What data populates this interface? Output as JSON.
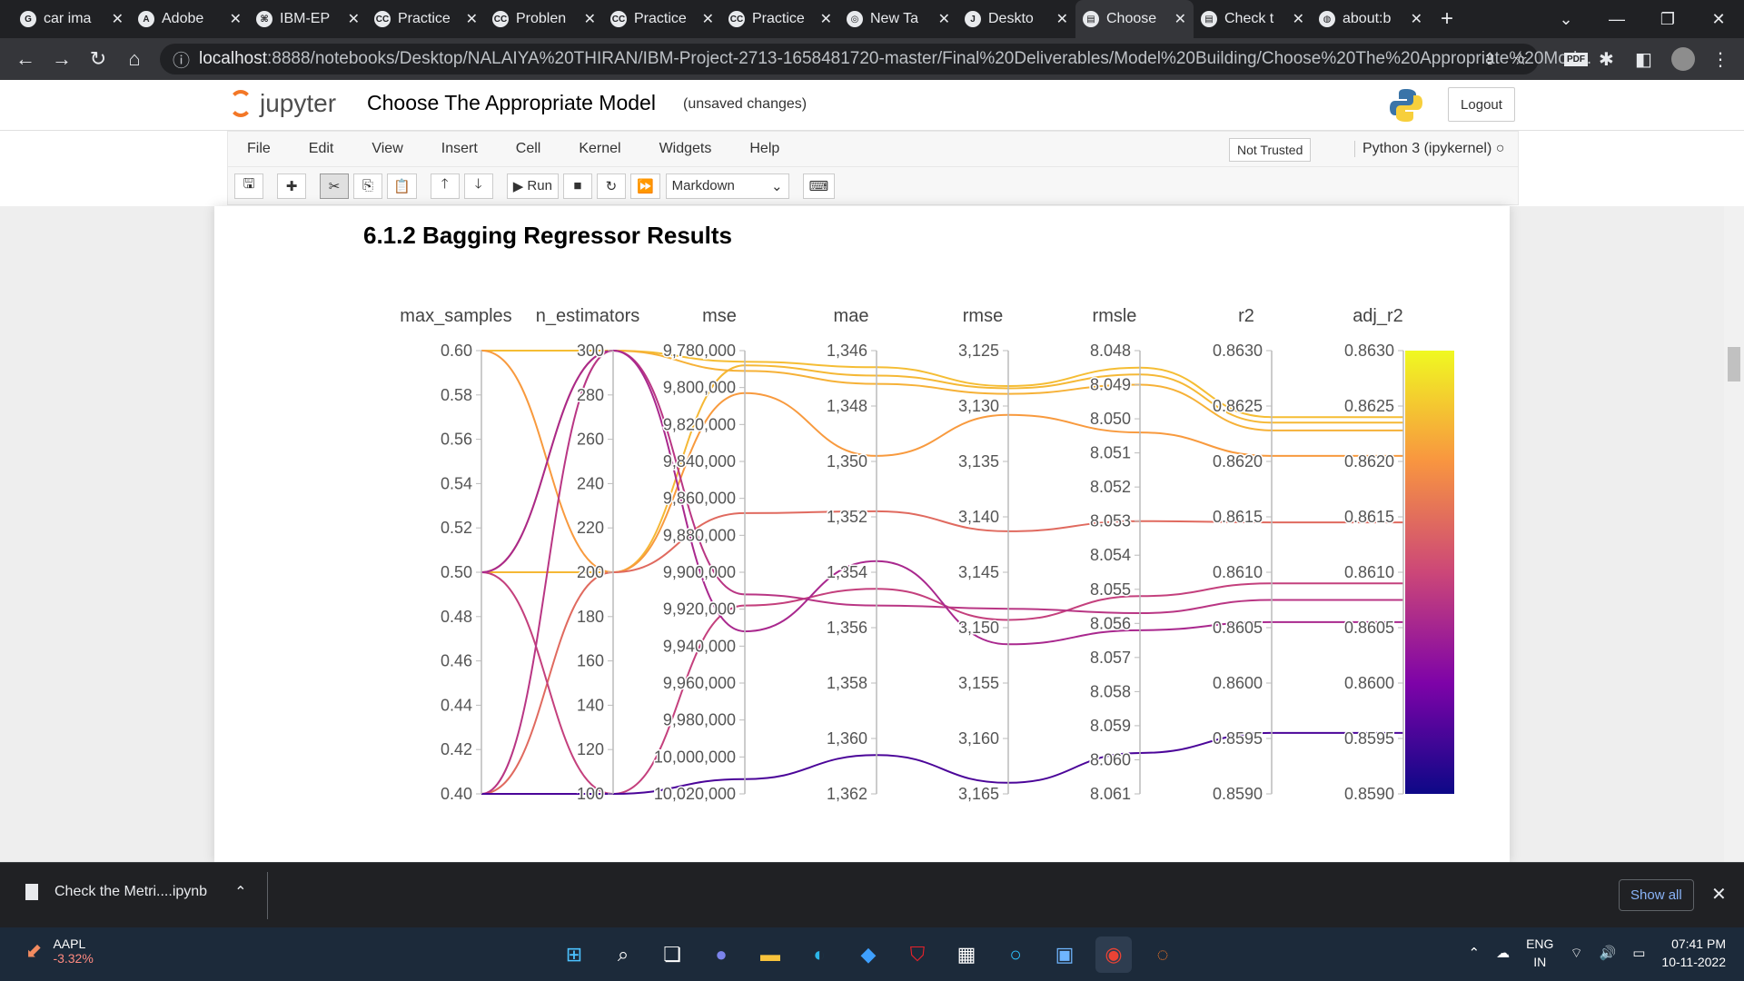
{
  "browser": {
    "tabs": [
      {
        "title": "car ima",
        "icon": "google-icon",
        "fav": "G"
      },
      {
        "title": "Adobe",
        "icon": "adobe-icon",
        "fav": "A"
      },
      {
        "title": "IBM-EP",
        "icon": "github-icon",
        "fav": "⌘"
      },
      {
        "title": "Practice",
        "icon": "cc-icon",
        "fav": "CC"
      },
      {
        "title": "Problen",
        "icon": "cc-icon",
        "fav": "CC"
      },
      {
        "title": "Practice",
        "icon": "cc-icon",
        "fav": "CC"
      },
      {
        "title": "Practice",
        "icon": "cc-icon",
        "fav": "CC"
      },
      {
        "title": "New Ta",
        "icon": "chrome-icon",
        "fav": "◎"
      },
      {
        "title": "Deskto",
        "icon": "jupyter-icon",
        "fav": "J"
      },
      {
        "title": "Choose",
        "icon": "jupyter-notebook-icon",
        "fav": "▤",
        "active": true
      },
      {
        "title": "Check t",
        "icon": "jupyter-notebook-icon",
        "fav": "▤"
      },
      {
        "title": "about:b",
        "icon": "globe-icon",
        "fav": "◍"
      }
    ],
    "url_host": "localhost",
    "url_rest": ":8888/notebooks/Desktop/NALAIYA%20THIRAN/IBM-Project-2713-1658481720-master/Final%20Deliverables/Model%20Building/Choose%20The%20Appropriate%20Mod..."
  },
  "jupyter": {
    "logo_text": "jupyter",
    "notebook_title": "Choose The Appropriate Model",
    "status": "(unsaved changes)",
    "logout_label": "Logout",
    "menu": [
      "File",
      "Edit",
      "View",
      "Insert",
      "Cell",
      "Kernel",
      "Widgets",
      "Help"
    ],
    "trusted_label": "Not Trusted",
    "kernel_label": "Python 3 (ipykernel)",
    "run_label": "Run",
    "cell_type": "Markdown"
  },
  "cell": {
    "heading": "6.1.2 Bagging Regressor Results"
  },
  "chart_data": {
    "type": "parallel-coordinates",
    "axes": [
      {
        "name": "max_samples",
        "min": 0.4,
        "max": 0.6,
        "ticks": [
          "0.60",
          "0.58",
          "0.56",
          "0.54",
          "0.52",
          "0.50",
          "0.48",
          "0.46",
          "0.44",
          "0.42",
          "0.40"
        ],
        "reversed": false
      },
      {
        "name": "n_estimators",
        "min": 100,
        "max": 300,
        "ticks": [
          "300",
          "280",
          "260",
          "240",
          "220",
          "200",
          "180",
          "160",
          "140",
          "120",
          "100"
        ],
        "reversed": false
      },
      {
        "name": "mse",
        "min": 9780000,
        "max": 10020000,
        "ticks": [
          "9,780,000",
          "9,800,000",
          "9,820,000",
          "9,840,000",
          "9,860,000",
          "9,880,000",
          "9,900,000",
          "9,920,000",
          "9,940,000",
          "9,960,000",
          "9,980,000",
          "10,000,000",
          "10,020,000"
        ],
        "reversed": true
      },
      {
        "name": "mae",
        "min": 1346,
        "max": 1362,
        "ticks": [
          "1,346",
          "1,348",
          "1,350",
          "1,352",
          "1,354",
          "1,356",
          "1,358",
          "1,360",
          "1,362"
        ],
        "reversed": true
      },
      {
        "name": "rmse",
        "min": 3125,
        "max": 3165,
        "ticks": [
          "3,125",
          "3,130",
          "3,135",
          "3,140",
          "3,145",
          "3,150",
          "3,155",
          "3,160",
          "3,165"
        ],
        "reversed": true
      },
      {
        "name": "rmsle",
        "min": 8.048,
        "max": 8.061,
        "ticks": [
          "8.048",
          "8.049",
          "8.050",
          "8.051",
          "8.052",
          "8.053",
          "8.054",
          "8.055",
          "8.056",
          "8.057",
          "8.058",
          "8.059",
          "8.060",
          "8.061"
        ],
        "reversed": true
      },
      {
        "name": "r2",
        "min": 0.859,
        "max": 0.863,
        "ticks": [
          "0.8630",
          "0.8625",
          "0.8620",
          "0.8615",
          "0.8610",
          "0.8605",
          "0.8600",
          "0.8595",
          "0.8590"
        ],
        "reversed": false
      },
      {
        "name": "adj_r2",
        "min": 0.859,
        "max": 0.863,
        "ticks": [
          "0.8630",
          "0.8625",
          "0.8620",
          "0.8615",
          "0.8610",
          "0.8605",
          "0.8600",
          "0.8595",
          "0.8590"
        ],
        "reversed": false
      }
    ],
    "colorscale": [
      "#0d0887",
      "#7e03a8",
      "#cc4778",
      "#f89540",
      "#f0f921"
    ],
    "rows": [
      [
        0.6,
        300,
        9786000,
        1346.6,
        3128.2,
        8.0485,
        0.8624,
        0.8624
      ],
      [
        0.5,
        200,
        9788000,
        1346.9,
        3128.4,
        8.0487,
        0.86235,
        0.86235
      ],
      [
        0.5,
        300,
        9791000,
        1347.2,
        3128.9,
        8.049,
        0.86228,
        0.86228
      ],
      [
        0.6,
        200,
        9803000,
        1349.8,
        3130.8,
        8.0504,
        0.86205,
        0.86205
      ],
      [
        0.4,
        200,
        9868000,
        1351.8,
        3141.3,
        8.053,
        0.86145,
        0.86145
      ],
      [
        0.5,
        100,
        9918000,
        1354.6,
        3149.3,
        8.0552,
        0.8609,
        0.8609
      ],
      [
        0.4,
        300,
        9912000,
        1355.2,
        3148.3,
        8.0557,
        0.86075,
        0.86075
      ],
      [
        0.5,
        300,
        9932000,
        1353.6,
        3151.5,
        8.0562,
        0.86055,
        0.86055
      ],
      [
        0.4,
        100,
        10012000,
        1360.6,
        3164.0,
        8.0598,
        0.85955,
        0.85955
      ]
    ]
  },
  "downloads": {
    "file": "Check the Metri....ipynb",
    "show_all": "Show all"
  },
  "taskbar": {
    "stock_name": "AAPL",
    "stock_change": "-3.32%",
    "lang_1": "ENG",
    "lang_2": "IN",
    "time": "07:41 PM",
    "date": "10-11-2022"
  }
}
